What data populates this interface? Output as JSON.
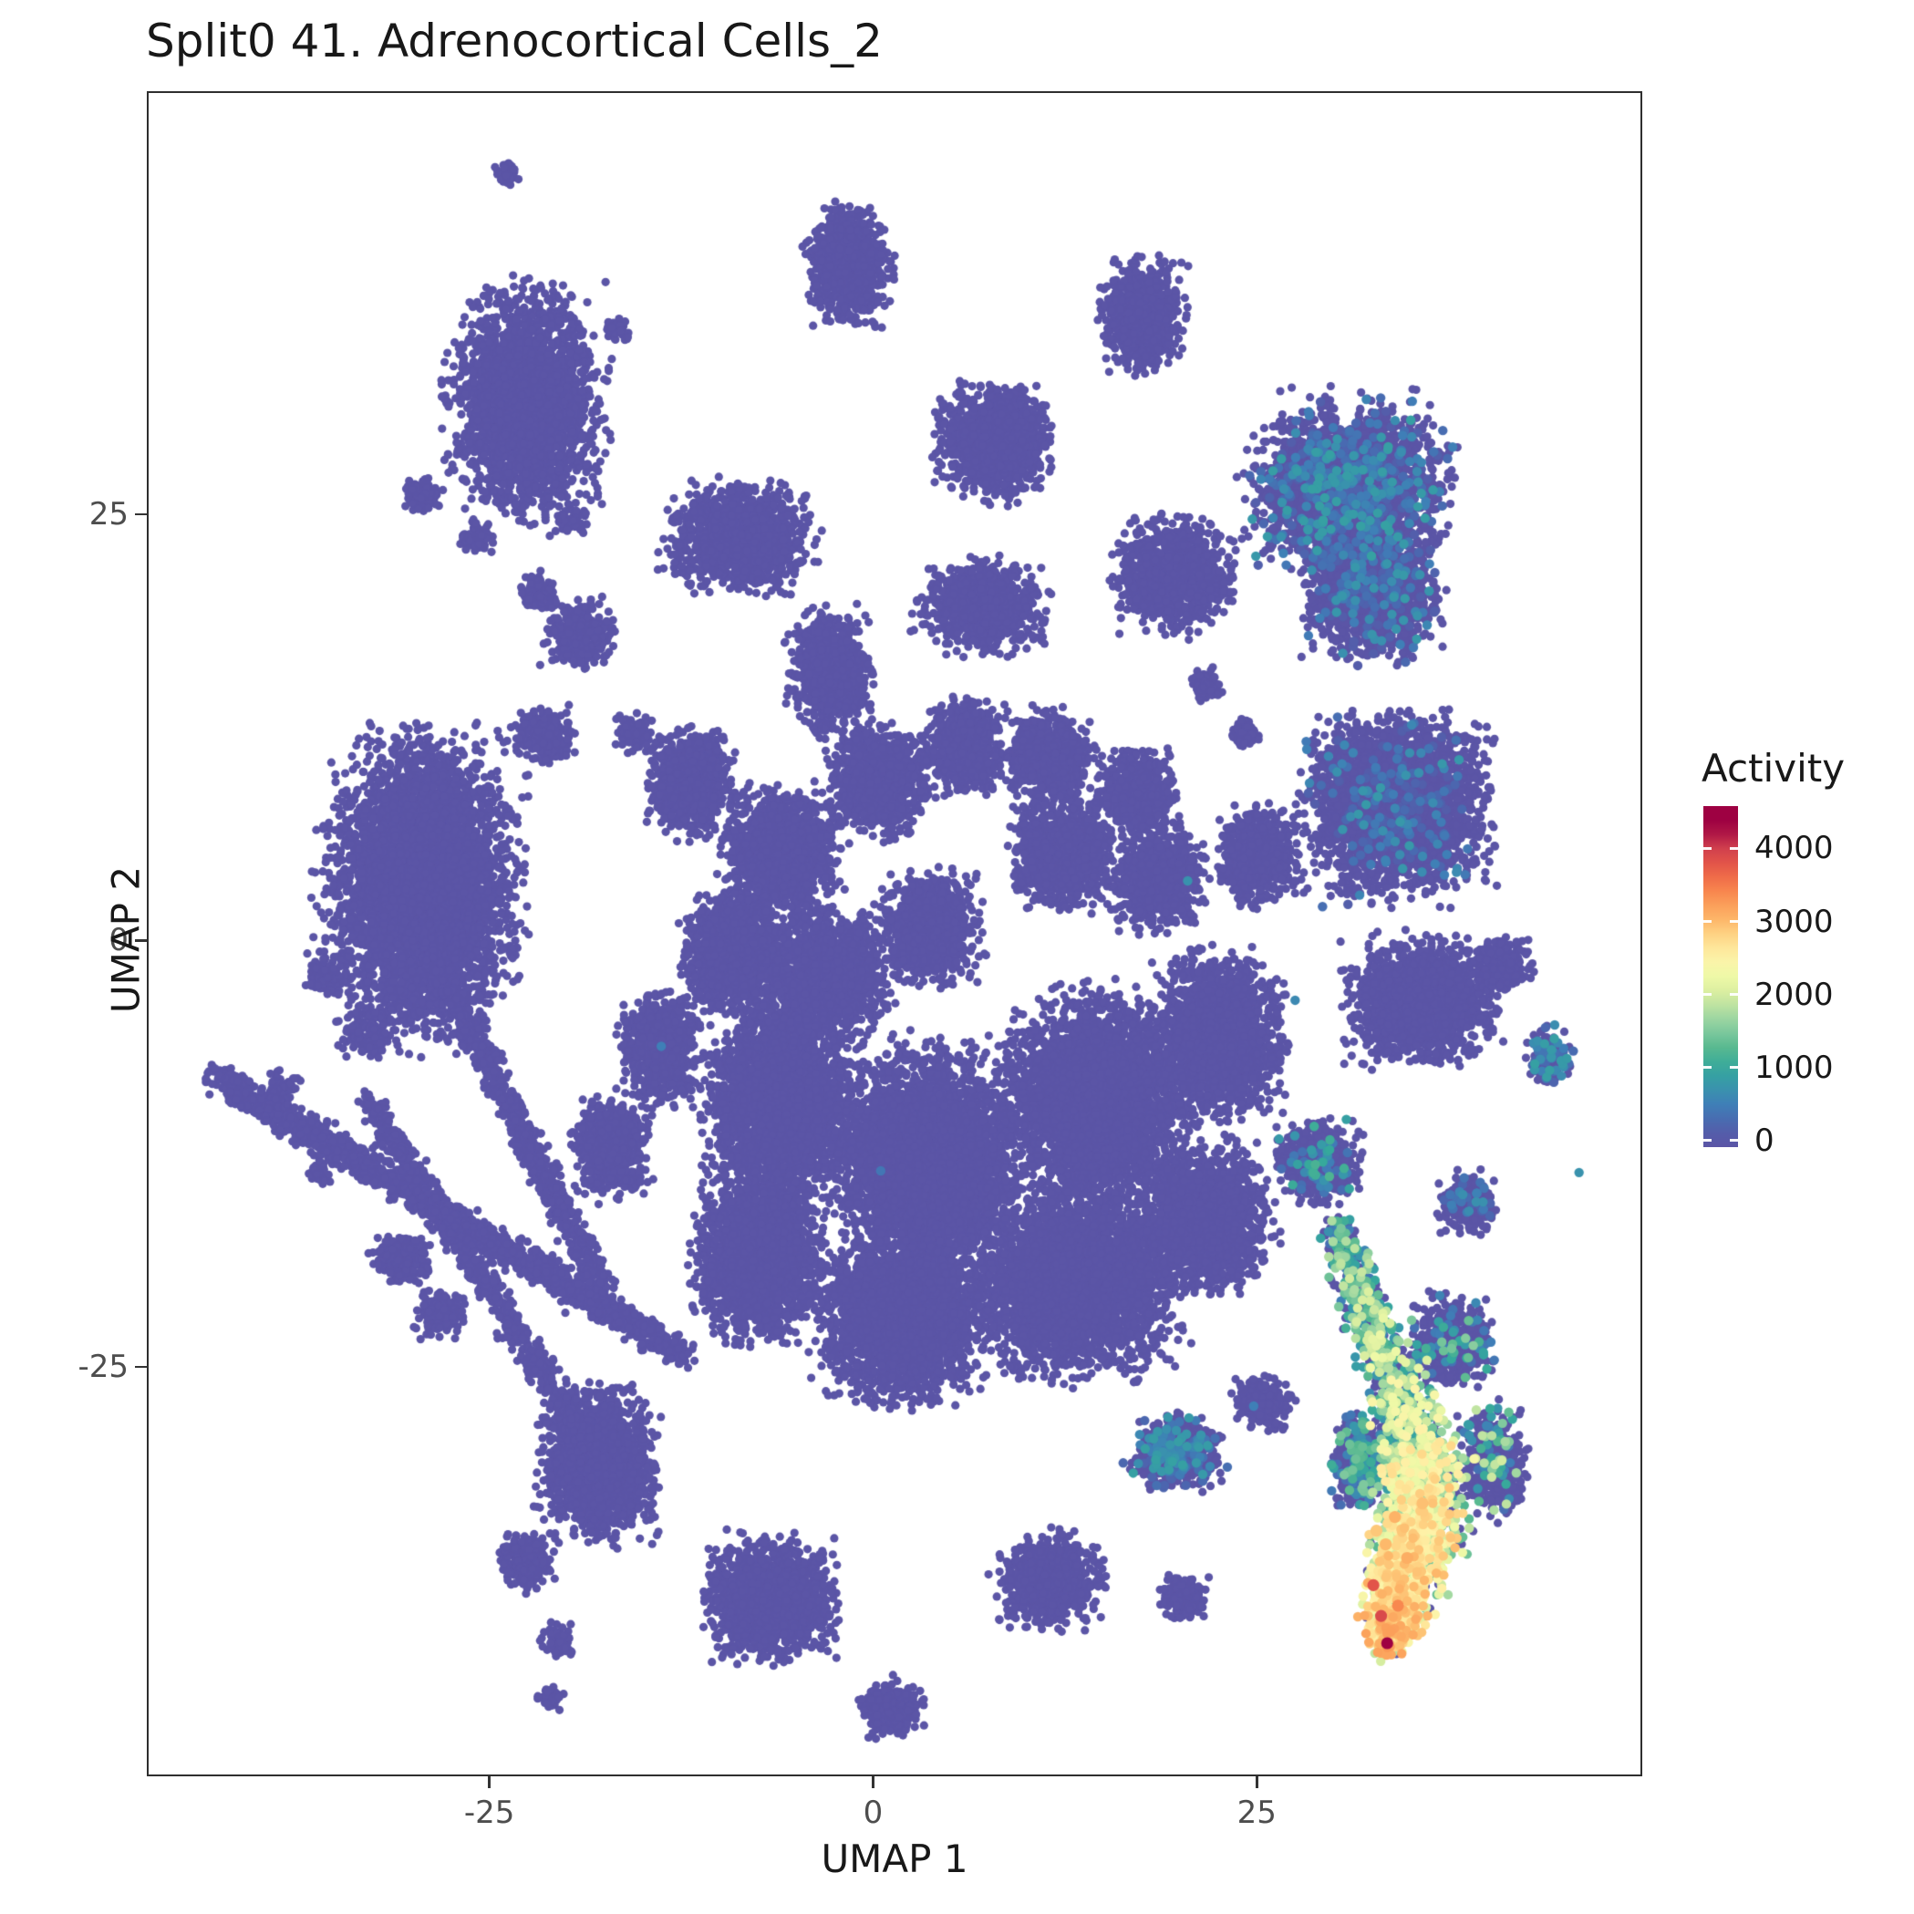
{
  "chart_data": {
    "type": "scatter",
    "title": "Split0 41. Adrenocortical Cells_2",
    "xlabel": "UMAP 1",
    "ylabel": "UMAP 2",
    "xlim": [
      -47.2,
      50.0
    ],
    "ylim": [
      -48.9,
      49.7
    ],
    "x_ticks": [
      {
        "value": -25,
        "label": "-25"
      },
      {
        "value": 0,
        "label": "0"
      },
      {
        "value": 25,
        "label": "25"
      }
    ],
    "y_ticks": [
      {
        "value": 25,
        "label": "25"
      },
      {
        "value": 0,
        "label": "0"
      },
      {
        "value": -25,
        "label": "-25"
      }
    ],
    "grid": false,
    "point_color_zero": "#5b55a6",
    "point_radius_px": 4.6,
    "legend": {
      "title": "Activity",
      "position": "right",
      "tick_values": [
        4000,
        3000,
        2000,
        1000,
        0
      ],
      "bar_range": [
        -90,
        4580
      ],
      "activity_max": 4300
    },
    "palette_stops": [
      {
        "t": 0.0,
        "c": "#5b55a6"
      },
      {
        "t": 0.058,
        "c": "#4a68b0"
      },
      {
        "t": 0.116,
        "c": "#3f7fb7"
      },
      {
        "t": 0.175,
        "c": "#3897ab"
      },
      {
        "t": 0.233,
        "c": "#35a89c"
      },
      {
        "t": 0.291,
        "c": "#55b78f"
      },
      {
        "t": 0.349,
        "c": "#7fc99e"
      },
      {
        "t": 0.407,
        "c": "#abdca2"
      },
      {
        "t": 0.465,
        "c": "#d7eda0"
      },
      {
        "t": 0.523,
        "c": "#eef9a7"
      },
      {
        "t": 0.581,
        "c": "#fef3a9"
      },
      {
        "t": 0.64,
        "c": "#fedd8e"
      },
      {
        "t": 0.698,
        "c": "#fdb96b"
      },
      {
        "t": 0.756,
        "c": "#fb9c58"
      },
      {
        "t": 0.814,
        "c": "#f67a49"
      },
      {
        "t": 0.872,
        "c": "#e65948"
      },
      {
        "t": 0.93,
        "c": "#d1404d"
      },
      {
        "t": 1.0,
        "c": "#9e0142"
      }
    ],
    "clusters": [
      [
        -23.8,
        45.0,
        0.7,
        0.7,
        60
      ],
      [
        -1.6,
        39.6,
        2.3,
        2.9,
        900
      ],
      [
        17.5,
        36.6,
        2.3,
        2.7,
        750
      ],
      [
        -22.6,
        31.4,
        4.2,
        5.5,
        2600
      ],
      [
        -29.4,
        26.1,
        1.0,
        0.9,
        90
      ],
      [
        -25.8,
        23.6,
        0.9,
        0.8,
        90
      ],
      [
        -19.6,
        24.5,
        0.8,
        0.7,
        60
      ],
      [
        -16.7,
        35.7,
        0.7,
        0.6,
        50
      ],
      [
        7.9,
        29.3,
        3.1,
        2.7,
        1300
      ],
      [
        31.0,
        26.5,
        5.3,
        4.2,
        2600,
        0.18,
        100,
        900
      ],
      [
        32.5,
        20.5,
        3.6,
        3.4,
        1500,
        0.12,
        100,
        800
      ],
      [
        -8.7,
        23.6,
        3.8,
        2.6,
        1400
      ],
      [
        19.6,
        21.4,
        3.2,
        2.7,
        1100
      ],
      [
        -19.0,
        17.9,
        1.9,
        1.7,
        300
      ],
      [
        -21.8,
        20.4,
        1.0,
        0.9,
        110
      ],
      [
        7.1,
        19.6,
        3.4,
        2.3,
        950
      ],
      [
        -2.8,
        15.7,
        2.3,
        2.9,
        850
      ],
      [
        -21.4,
        12.1,
        1.7,
        1.3,
        230
      ],
      [
        -11.9,
        9.3,
        2.5,
        2.7,
        850
      ],
      [
        -15.5,
        12.1,
        1.0,
        1.0,
        110
      ],
      [
        -29.4,
        3.2,
        5.0,
        7.3,
        5000
      ],
      [
        -35.7,
        -2.1,
        1.1,
        1.0,
        100
      ],
      [
        -38.5,
        -8.6,
        0.9,
        0.8,
        70
      ],
      [
        -33.0,
        -5.5,
        1.3,
        1.2,
        150
      ],
      [
        34.1,
        7.9,
        5.0,
        4.4,
        3000,
        0.06,
        100,
        800
      ],
      [
        44.0,
        -6.8,
        1.3,
        1.5,
        160,
        0.3,
        200,
        900
      ],
      [
        35.7,
        -3.6,
        4.0,
        3.0,
        1800
      ],
      [
        40.9,
        -1.4,
        1.6,
        1.4,
        260
      ],
      [
        21.8,
        15.0,
        0.9,
        0.8,
        90
      ],
      [
        24.2,
        12.1,
        0.8,
        0.7,
        80
      ],
      [
        -6.0,
        5.0,
        3.1,
        3.1,
        1500
      ],
      [
        0.4,
        9.3,
        2.6,
        2.6,
        1200
      ],
      [
        6.0,
        11.4,
        2.1,
        2.3,
        800
      ],
      [
        11.5,
        10.7,
        2.3,
        2.3,
        800
      ],
      [
        17.1,
        8.6,
        2.1,
        2.1,
        700
      ],
      [
        12.3,
        5.0,
        2.7,
        2.5,
        1000
      ],
      [
        18.7,
        3.6,
        2.5,
        2.5,
        900
      ],
      [
        25.0,
        5.0,
        2.1,
        2.4,
        700
      ],
      [
        -9.1,
        -0.7,
        2.7,
        2.9,
        1200
      ],
      [
        -2.8,
        -2.1,
        3.1,
        3.1,
        1500
      ],
      [
        3.6,
        0.7,
        2.7,
        2.7,
        1100
      ],
      [
        -6.0,
        -9.3,
        4.0,
        5.0,
        3000
      ],
      [
        3.6,
        -12.9,
        5.0,
        5.5,
        4200
      ],
      [
        14.7,
        -9.3,
        5.0,
        5.0,
        3600
      ],
      [
        22.6,
        -5.7,
        3.5,
        4.0,
        2000
      ],
      [
        13.1,
        -20.0,
        5.5,
        4.5,
        3600
      ],
      [
        2.0,
        -22.1,
        4.5,
        4.0,
        2900
      ],
      [
        -7.5,
        -18.6,
        3.5,
        4.0,
        2200
      ],
      [
        21.8,
        -16.4,
        3.5,
        3.5,
        1800
      ],
      [
        -13.9,
        -6.4,
        2.2,
        2.6,
        800
      ],
      [
        -17.1,
        -12.1,
        2.0,
        2.4,
        700
      ],
      [
        -30.6,
        -18.6,
        1.6,
        1.3,
        260
      ],
      [
        -28.2,
        -21.8,
        1.3,
        1.1,
        200
      ],
      [
        -36.1,
        -13.6,
        0.6,
        0.6,
        40
      ],
      [
        -17.9,
        -30.7,
        3.1,
        3.6,
        1800
      ],
      [
        -22.6,
        -36.4,
        1.5,
        1.4,
        260
      ],
      [
        -20.6,
        -41.1,
        0.9,
        0.8,
        90
      ],
      [
        -21.0,
        -44.3,
        0.7,
        0.6,
        50
      ],
      [
        -6.7,
        -38.6,
        3.4,
        2.9,
        1700
      ],
      [
        1.2,
        -45.0,
        1.7,
        1.4,
        300
      ],
      [
        11.5,
        -37.5,
        2.7,
        2.2,
        900
      ],
      [
        20.2,
        -38.6,
        1.4,
        1.1,
        190
      ],
      [
        19.8,
        -30.0,
        2.4,
        1.8,
        620,
        0.22,
        200,
        900
      ],
      [
        25.4,
        -27.1,
        1.6,
        1.3,
        260
      ],
      [
        37.7,
        -23.6,
        2.2,
        2.2,
        600,
        0.1,
        300,
        1600
      ],
      [
        40.3,
        -30.5,
        1.8,
        2.6,
        500,
        0.15,
        300,
        2000
      ],
      [
        38.9,
        -15.4,
        1.6,
        1.4,
        260,
        0.1,
        200,
        700
      ],
      [
        29.0,
        -13.0,
        2.2,
        2.0,
        600,
        0.1,
        300,
        1200
      ],
      [
        31.8,
        -30.5,
        1.6,
        2.2,
        500,
        0.25,
        300,
        1500
      ]
    ],
    "arms": [
      [
        -42.9,
        -7.9,
        -12.3,
        -24.3,
        0.9,
        1600
      ],
      [
        -29.0,
        -0.5,
        -17.5,
        -20.5,
        0.8,
        900
      ],
      [
        -32.9,
        -9.3,
        -18.7,
        -29.3,
        0.8,
        800
      ]
    ],
    "tail": {
      "nodes": [
        [
          30.2,
          -16.8,
          1.2,
          0.5,
          300,
          1800
        ],
        [
          32.9,
          -23.6,
          1.4,
          0.6,
          400,
          2200
        ],
        [
          35.3,
          -29.3,
          2.2,
          0.7,
          600,
          2600
        ],
        [
          35.8,
          -33.5,
          2.6,
          0.8,
          1000,
          2900
        ],
        [
          34.3,
          -38.0,
          2.2,
          0.85,
          1400,
          3100
        ],
        [
          33.6,
          -41.0,
          1.2,
          0.9,
          1800,
          3300
        ]
      ],
      "seg_n": [
        350,
        400,
        600,
        700,
        400
      ]
    },
    "singles": [
      [
        30,
        27,
        700
      ],
      [
        28.5,
        24.5,
        550
      ],
      [
        32.5,
        26.5,
        650
      ],
      [
        20.5,
        3.5,
        700
      ],
      [
        -13.8,
        -6.2,
        500
      ],
      [
        44.2,
        -6.4,
        800
      ],
      [
        44.5,
        -7.6,
        600
      ],
      [
        24.8,
        -27.3,
        500
      ],
      [
        0.5,
        -13.5,
        400
      ],
      [
        46.0,
        -13.6,
        700
      ],
      [
        27.5,
        -3.5,
        600
      ]
    ],
    "highlights": [
      [
        33.5,
        -41.2,
        4300
      ],
      [
        33.1,
        -39.6,
        3900
      ],
      [
        34.2,
        -39.0,
        3400
      ],
      [
        32.6,
        -37.8,
        3800
      ],
      [
        34.8,
        -36.2,
        3100
      ],
      [
        33.4,
        -35.4,
        3000
      ],
      [
        35.8,
        -33.0,
        2950
      ],
      [
        34.0,
        -33.8,
        3050
      ],
      [
        32.8,
        -34.6,
        2900
      ]
    ]
  }
}
